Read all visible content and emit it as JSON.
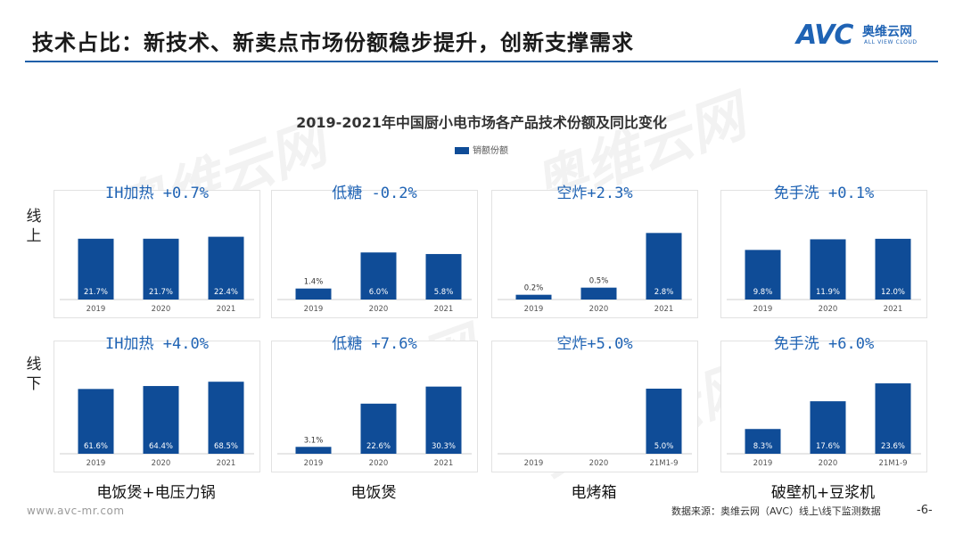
{
  "header": {
    "title": "技术占比：新技术、新卖点市场份额稳步提升，创新支撑需求",
    "logo": {
      "avc": "AVC",
      "cn": "奥维云网",
      "en": "ALL VIEW CLOUD"
    }
  },
  "colors": {
    "bar": "#0f4c97",
    "accent": "#1f63b4",
    "rule": "#1f5fa8"
  },
  "chart_title": "2019-2021年中国厨小电市场各产品技术份额及同比变化",
  "legend_label": "销额份额",
  "row_labels": [
    "线上",
    "线下"
  ],
  "category_labels": [
    "电饭煲+电压力锅",
    "电饭煲",
    "电烤箱",
    "破壁机+豆浆机"
  ],
  "chart_data": [
    {
      "type": "bar",
      "title": "IH加热 +0.7%",
      "row": "线上",
      "categories": [
        "2019",
        "2020",
        "2021"
      ],
      "values": [
        21.7,
        21.7,
        22.4
      ],
      "labels": [
        "21.7%",
        "21.7%",
        "22.4%"
      ],
      "ylim": [
        0,
        28
      ]
    },
    {
      "type": "bar",
      "title": "低糖 -0.2%",
      "row": "线上",
      "categories": [
        "2019",
        "2020",
        "2021"
      ],
      "values": [
        1.4,
        6.0,
        5.8
      ],
      "labels": [
        "1.4%",
        "6.0%",
        "5.8%"
      ],
      "ylim": [
        0,
        10
      ]
    },
    {
      "type": "bar",
      "title": "空炸+2.3%",
      "row": "线上",
      "categories": [
        "2019",
        "2020",
        "2021"
      ],
      "values": [
        0.2,
        0.5,
        2.8
      ],
      "labels": [
        "0.2%",
        "0.5%",
        "2.8%"
      ],
      "ylim": [
        0,
        3.3
      ]
    },
    {
      "type": "bar",
      "title": "免手洗 +0.1%",
      "row": "线上",
      "categories": [
        "2019",
        "2020",
        "2021"
      ],
      "values": [
        9.8,
        11.9,
        12.0
      ],
      "labels": [
        "9.8%",
        "11.9%",
        "12.0%"
      ],
      "ylim": [
        0,
        15.5
      ]
    },
    {
      "type": "bar",
      "title": "IH加热 +4.0%",
      "row": "线下",
      "categories": [
        "2019",
        "2020",
        "2021"
      ],
      "values": [
        61.6,
        64.4,
        68.5
      ],
      "labels": [
        "61.6%",
        "64.4%",
        "68.5%"
      ],
      "ylim": [
        0,
        78
      ]
    },
    {
      "type": "bar",
      "title": "低糖 +7.6%",
      "row": "线下",
      "categories": [
        "2019",
        "2020",
        "2021"
      ],
      "values": [
        3.1,
        22.6,
        30.3
      ],
      "labels": [
        "3.1%",
        "22.6%",
        "30.3%"
      ],
      "ylim": [
        0,
        37
      ]
    },
    {
      "type": "bar",
      "title": "空炸+5.0%",
      "row": "线下",
      "categories": [
        "2019",
        "2020",
        "21M1-9"
      ],
      "values": [
        0,
        0,
        5.0
      ],
      "labels": [
        "",
        "",
        "5.0%"
      ],
      "ylim": [
        0,
        6.3
      ]
    },
    {
      "type": "bar",
      "title": "免手洗 +6.0%",
      "row": "线下",
      "categories": [
        "2019",
        "2020",
        "21M1-9"
      ],
      "values": [
        8.3,
        17.6,
        23.6
      ],
      "labels": [
        "8.3%",
        "17.6%",
        "23.6%"
      ],
      "ylim": [
        0,
        27.5
      ]
    }
  ],
  "footer": {
    "url": "www.avc-mr.com",
    "source": "数据来源：奥维云网（AVC）线上\\线下监测数据",
    "page": "-6-"
  },
  "watermark": "奥维云网"
}
